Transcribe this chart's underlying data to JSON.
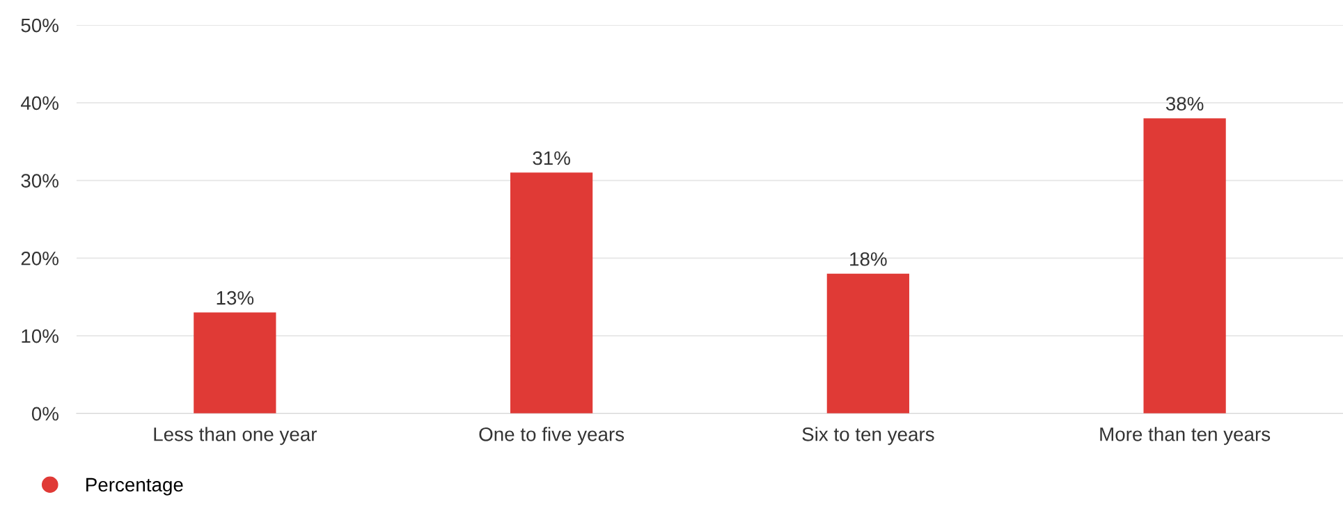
{
  "chart_data": {
    "type": "bar",
    "categories": [
      "Less than one year",
      "One to five years",
      "Six to ten years",
      "More than ten years"
    ],
    "series": [
      {
        "name": "Percentage",
        "color": "#e03a36",
        "values": [
          13,
          31,
          18,
          38
        ],
        "value_labels": [
          "13%",
          "31%",
          "18%",
          "38%"
        ]
      }
    ],
    "ylim": [
      0,
      50
    ],
    "yticks": [
      {
        "value": 0,
        "label": "0%"
      },
      {
        "value": 10,
        "label": "10%"
      },
      {
        "value": 20,
        "label": "20%"
      },
      {
        "value": 30,
        "label": "30%"
      },
      {
        "value": 40,
        "label": "40%"
      },
      {
        "value": 50,
        "label": "50%"
      }
    ],
    "grid": "y",
    "legend": "bottom left"
  }
}
